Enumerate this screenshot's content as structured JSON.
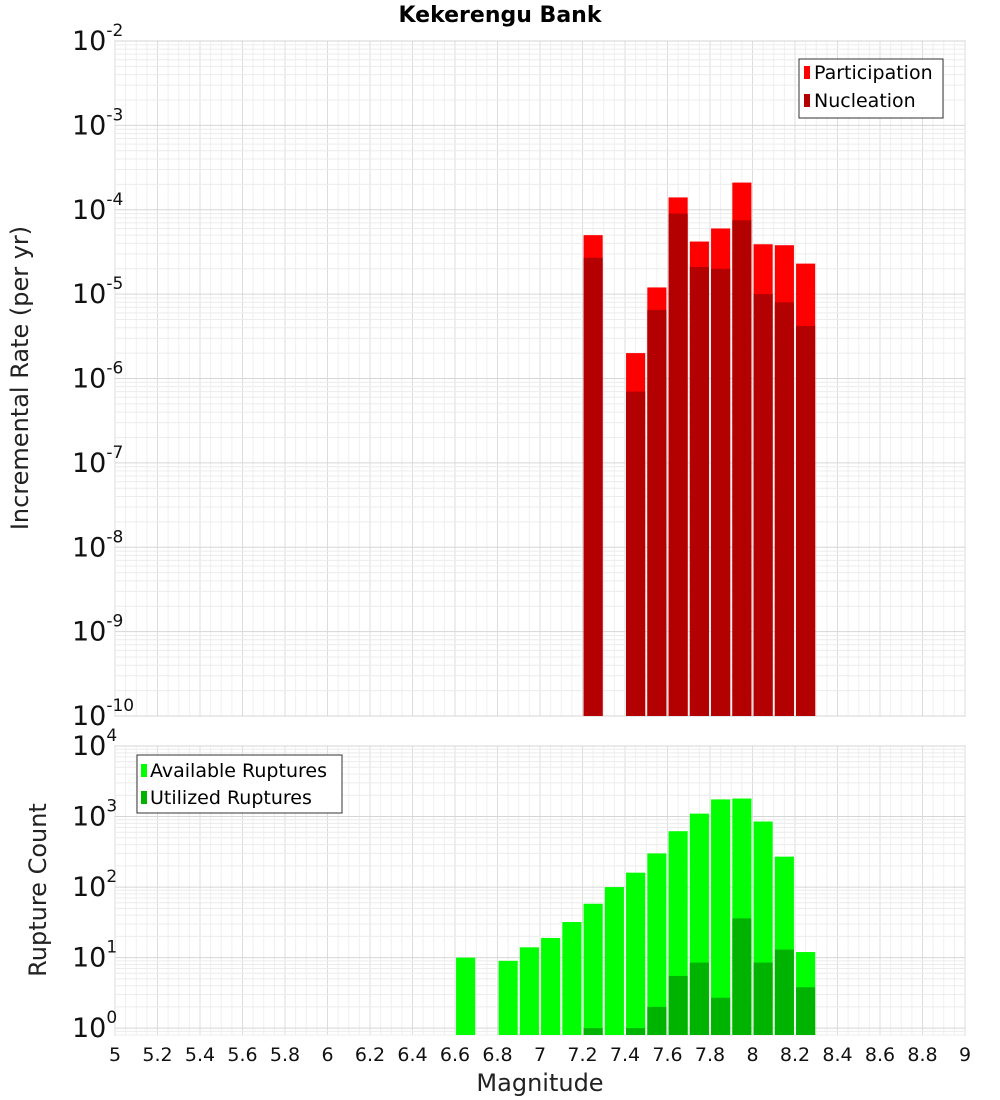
{
  "title": "Kekerengu Bank",
  "chart_data": [
    {
      "type": "bar",
      "scale": "log",
      "title": "Kekerengu Bank",
      "xlabel": "Magnitude",
      "ylabel": "Incremental Rate (per yr)",
      "xlim": [
        5,
        9
      ],
      "ylim": [
        1e-10,
        0.01
      ],
      "y_tick_base": "10",
      "y_tick_exponents": [
        "-10",
        "-9",
        "-8",
        "-7",
        "-6",
        "-5",
        "-4",
        "-3",
        "-2"
      ],
      "grid": true,
      "legend_position": "top-right",
      "bar_width": 0.09,
      "x": [
        7.25,
        7.45,
        7.55,
        7.65,
        7.75,
        7.85,
        7.95,
        8.05,
        8.15,
        8.25
      ],
      "series": [
        {
          "name": "Participation",
          "color": "#ff0000",
          "values": [
            5e-05,
            2e-06,
            1.2e-05,
            0.00014,
            4.2e-05,
            6e-05,
            0.00021,
            3.9e-05,
            3.8e-05,
            2.3e-05
          ]
        },
        {
          "name": "Nucleation",
          "color": "#b30000",
          "values": [
            2.7e-05,
            7e-07,
            6.5e-06,
            9e-05,
            2.1e-05,
            2e-05,
            7.5e-05,
            1e-05,
            8e-06,
            4.2e-06
          ]
        }
      ]
    },
    {
      "type": "bar",
      "scale": "log",
      "xlabel": "Magnitude",
      "ylabel": "Rupture Count",
      "xlim": [
        5,
        9
      ],
      "ylim": [
        0.8,
        10000
      ],
      "y_tick_base": "10",
      "y_tick_exponents": [
        "0",
        "1",
        "2",
        "3",
        "4"
      ],
      "x_ticks": [
        "5",
        "5.2",
        "5.4",
        "5.6",
        "5.8",
        "6",
        "6.2",
        "6.4",
        "6.6",
        "6.8",
        "7",
        "7.2",
        "7.4",
        "7.6",
        "7.8",
        "8",
        "8.2",
        "8.4",
        "8.6",
        "8.8",
        "9"
      ],
      "grid": true,
      "legend_position": "top-left",
      "bar_width": 0.09,
      "series": [
        {
          "name": "Available Ruptures",
          "color": "#00ff00",
          "x": [
            6.65,
            6.85,
            6.95,
            7.05,
            7.15,
            7.25,
            7.35,
            7.45,
            7.55,
            7.65,
            7.75,
            7.85,
            7.95,
            8.05,
            8.15,
            8.25
          ],
          "values": [
            10,
            9,
            14,
            19,
            32,
            58,
            100,
            160,
            300,
            620,
            1100,
            1750,
            1800,
            850,
            270,
            12
          ]
        },
        {
          "name": "Utilized Ruptures",
          "color": "#00b300",
          "x": [
            7.25,
            7.45,
            7.55,
            7.65,
            7.75,
            7.85,
            7.95,
            8.05,
            8.15,
            8.25
          ],
          "values": [
            1,
            1,
            2,
            5.5,
            8.5,
            2.7,
            36,
            8.5,
            13,
            3.8
          ]
        }
      ]
    }
  ]
}
